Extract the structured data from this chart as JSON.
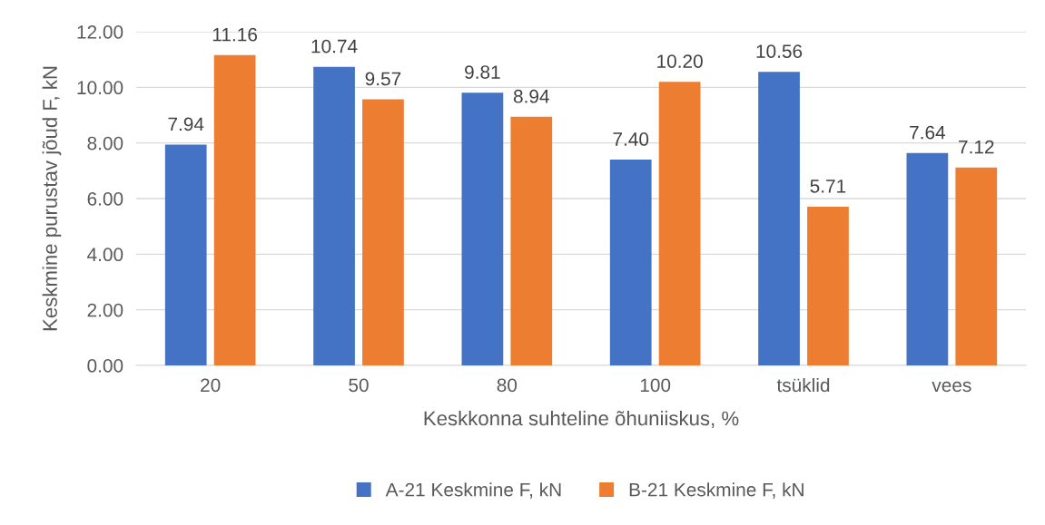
{
  "chart_data": {
    "type": "bar",
    "xlabel": "Keskkonna suhteline õhuniiskus, %",
    "ylabel": "Keskmine purustav jõud F, kN",
    "categories": [
      "20",
      "50",
      "80",
      "100",
      "tsüklid",
      "vees"
    ],
    "series": [
      {
        "name": "A-21 Keskmine F, kN",
        "color": "#4472c4",
        "values": [
          7.94,
          10.74,
          9.81,
          7.4,
          10.56,
          7.64
        ],
        "value_labels": [
          "7.94",
          "10.74",
          "9.81",
          "7.40",
          "10.56",
          "7.64"
        ]
      },
      {
        "name": "B-21 Keskmine F, kN",
        "color": "#ed7d31",
        "values": [
          11.16,
          9.57,
          8.94,
          10.2,
          5.71,
          7.12
        ],
        "value_labels": [
          "11.16",
          "9.57",
          "8.94",
          "10.20",
          "5.71",
          "7.12"
        ]
      }
    ],
    "ylim": [
      0,
      12
    ],
    "yticks": [
      {
        "value": 0,
        "label": "0.00"
      },
      {
        "value": 2,
        "label": "2.00"
      },
      {
        "value": 4,
        "label": "4.00"
      },
      {
        "value": 6,
        "label": "6.00"
      },
      {
        "value": 8,
        "label": "8.00"
      },
      {
        "value": 10,
        "label": "10.00"
      },
      {
        "value": 12,
        "label": "12.00"
      }
    ],
    "grid": "y",
    "legend": "bottom"
  }
}
